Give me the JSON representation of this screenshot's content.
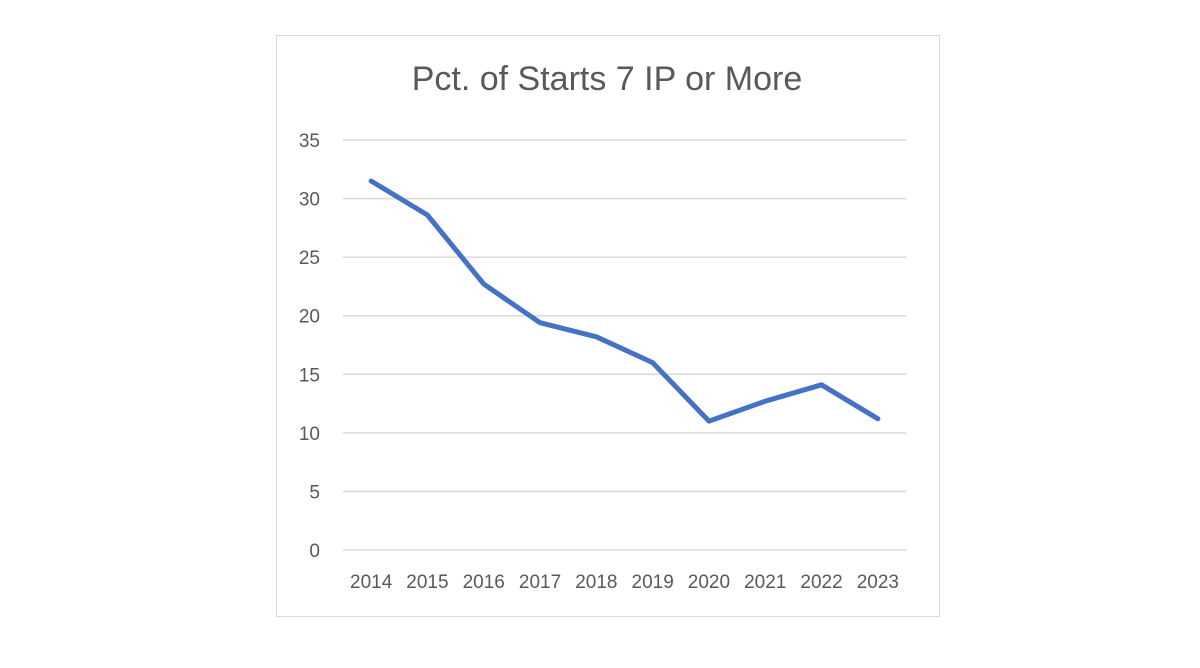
{
  "chart_data": {
    "type": "line",
    "title": "Pct. of Starts 7 IP or More",
    "xlabel": "",
    "ylabel": "",
    "categories": [
      "2014",
      "2015",
      "2016",
      "2017",
      "2018",
      "2019",
      "2020",
      "2021",
      "2022",
      "2023"
    ],
    "values": [
      31.5,
      28.6,
      22.7,
      19.4,
      18.2,
      16.0,
      11.0,
      12.7,
      14.1,
      11.2
    ],
    "ylim": [
      0,
      35
    ],
    "yticks": [
      "0",
      "5",
      "10",
      "15",
      "20",
      "25",
      "30",
      "35"
    ],
    "grid": true,
    "legend": "none",
    "line_color": "#4472c4",
    "grid_color": "#d9d9d9"
  }
}
